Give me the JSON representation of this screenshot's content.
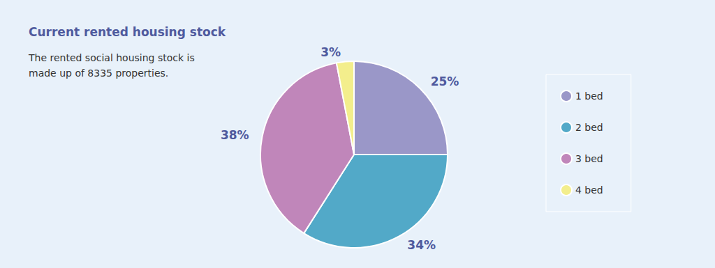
{
  "chart_data": {
    "type": "pie",
    "title": "Current rented housing stock",
    "subtitle": "The rented social housing stock is made up of 8335 properties.",
    "categories": [
      "1 bed",
      "2 bed",
      "3 bed",
      "4 bed"
    ],
    "values": [
      25,
      34,
      38,
      3
    ],
    "value_labels": [
      "25%",
      "34%",
      "38%",
      "3%"
    ],
    "colors": [
      "#9a97c8",
      "#52a9c8",
      "#c086ba",
      "#f3ee8c"
    ],
    "data_labels": true,
    "legend": "right"
  }
}
